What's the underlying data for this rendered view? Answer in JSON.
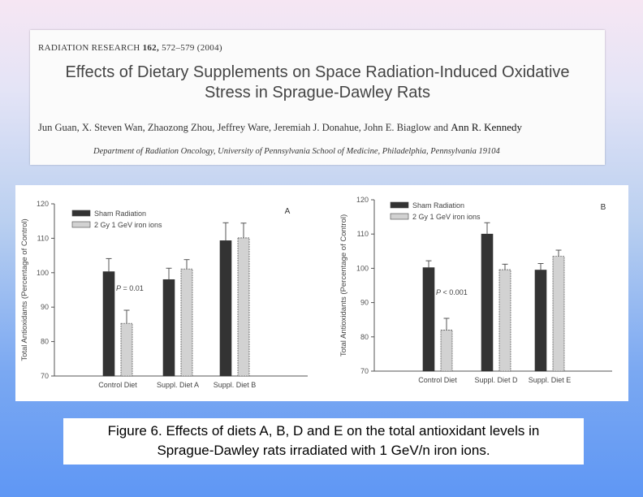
{
  "paper": {
    "journal_name": "RADIATION RESEARCH",
    "journal_volume": "162,",
    "journal_pages": "572–579 (2004)",
    "title_line1": "Effects of Dietary Supplements on Space Radiation-Induced Oxidative",
    "title_line2": "Stress in Sprague-Dawley Rats",
    "authors": "Jun Guan, X. Steven Wan, Zhaozong Zhou, Jeffrey Ware, Jeremiah J. Donahue, John E. Biaglow and",
    "last_author": "Ann R. Kennedy",
    "affiliation": "Department of Radiation Oncology, University of Pennsylvania School of Medicine, Philadelphia, Pennsylvania 19104"
  },
  "caption": {
    "line1": "Figure 6. Effects of diets A, B, D and E on the total antioxidant levels in",
    "line2": "Sprague-Dawley rats irradiated with 1 GeV/n iron ions."
  },
  "colors": {
    "sham": "#333333",
    "irradiated": "#d2d2d2"
  },
  "chart_data": [
    {
      "type": "bar",
      "panel_label": "A",
      "ylabel": "Total Antioxidants (Percentage of Control)",
      "ylim": [
        70,
        120
      ],
      "yticks": [
        "70",
        "80",
        "90",
        "100",
        "110",
        "120"
      ],
      "categories": [
        "Control Diet",
        "Suppl. Diet A",
        "Suppl. Diet B"
      ],
      "series": [
        {
          "name": "Sham Radiation",
          "values": [
            100.3,
            98.0,
            109.3
          ],
          "errors": [
            3.8,
            3.3,
            5.2
          ]
        },
        {
          "name": "2 Gy 1 GeV iron ions",
          "values": [
            85.3,
            101.1,
            110.1
          ],
          "errors": [
            3.8,
            2.7,
            4.3
          ]
        }
      ],
      "annotation": {
        "p_letter": "P",
        "p_rest": " = 0.01"
      }
    },
    {
      "type": "bar",
      "panel_label": "B",
      "ylabel": "Total Antioxidants (Percentage of Control)",
      "ylim": [
        70,
        120
      ],
      "yticks": [
        "70",
        "80",
        "90",
        "100",
        "110",
        "120"
      ],
      "categories": [
        "Control Diet",
        "Suppl. Diet D",
        "Suppl. Diet E"
      ],
      "series": [
        {
          "name": "Sham Radiation",
          "values": [
            100.2,
            110.0,
            99.5
          ],
          "errors": [
            2.0,
            3.3,
            1.9
          ]
        },
        {
          "name": "2 Gy 1 GeV iron ions",
          "values": [
            82.0,
            99.6,
            103.5
          ],
          "errors": [
            3.4,
            1.6,
            1.8
          ]
        }
      ],
      "annotation": {
        "p_letter": "P",
        "p_rest": " < 0.001"
      }
    }
  ]
}
